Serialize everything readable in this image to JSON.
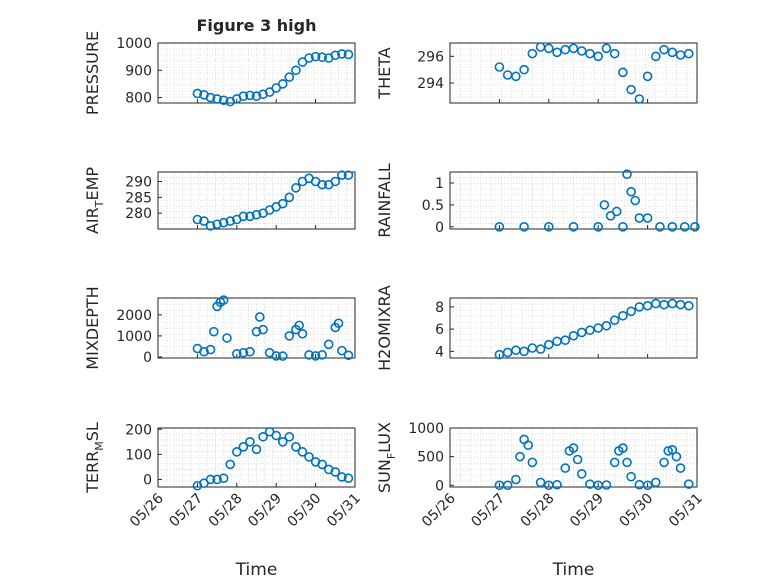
{
  "figure": {
    "title": "Figure 3 high"
  },
  "colors": {
    "marker": "#0072BD",
    "axis": "#262626",
    "grid": "#c8c8c8",
    "background": "#ffffff"
  },
  "chart_data": [
    {
      "type": "scatter",
      "title": "Figure 3 high",
      "xlabel": "",
      "ylabel": "PRESSURE",
      "xlim": [
        "05/26",
        "05/31"
      ],
      "ylim": [
        780,
        1000
      ],
      "grid": true,
      "yticks": [
        800,
        900,
        1000
      ],
      "x": [
        "05/27 00:00",
        "05/27 04:00",
        "05/27 08:00",
        "05/27 12:00",
        "05/27 16:00",
        "05/27 20:00",
        "05/28 00:00",
        "05/28 04:00",
        "05/28 08:00",
        "05/28 12:00",
        "05/28 16:00",
        "05/28 20:00",
        "05/29 00:00",
        "05/29 04:00",
        "05/29 08:00",
        "05/29 12:00",
        "05/29 16:00",
        "05/29 20:00",
        "05/30 00:00",
        "05/30 04:00",
        "05/30 08:00",
        "05/30 12:00",
        "05/30 16:00",
        "05/30 20:00"
      ],
      "y": [
        815,
        810,
        800,
        795,
        790,
        785,
        795,
        805,
        808,
        805,
        812,
        820,
        835,
        850,
        875,
        900,
        930,
        945,
        950,
        948,
        945,
        955,
        960,
        958
      ]
    },
    {
      "type": "scatter",
      "title": "",
      "xlabel": "",
      "ylabel": "THETA",
      "xlim": [
        "05/26",
        "05/31"
      ],
      "ylim": [
        292.5,
        297
      ],
      "grid": true,
      "yticks": [
        294,
        296
      ],
      "x": [
        "05/27 00:00",
        "05/27 04:00",
        "05/27 08:00",
        "05/27 12:00",
        "05/27 16:00",
        "05/27 20:00",
        "05/28 00:00",
        "05/28 04:00",
        "05/28 08:00",
        "05/28 12:00",
        "05/28 16:00",
        "05/28 20:00",
        "05/29 00:00",
        "05/29 04:00",
        "05/29 08:00",
        "05/29 12:00",
        "05/29 16:00",
        "05/29 20:00",
        "05/30 00:00",
        "05/30 04:00",
        "05/30 08:00",
        "05/30 12:00",
        "05/30 16:00",
        "05/30 20:00"
      ],
      "y": [
        295.2,
        294.6,
        294.5,
        295.0,
        296.2,
        296.7,
        296.6,
        296.3,
        296.5,
        296.6,
        296.4,
        296.2,
        296.0,
        296.6,
        296.2,
        294.8,
        293.5,
        292.8,
        294.5,
        296.0,
        296.5,
        296.3,
        296.1,
        296.2
      ]
    },
    {
      "type": "scatter",
      "title": "",
      "xlabel": "",
      "ylabel": "AIR_TEMP",
      "xlim": [
        "05/26",
        "05/31"
      ],
      "ylim": [
        275,
        293
      ],
      "grid": true,
      "yticks": [
        280,
        285,
        290
      ],
      "x": [
        "05/27 00:00",
        "05/27 04:00",
        "05/27 08:00",
        "05/27 12:00",
        "05/27 16:00",
        "05/27 20:00",
        "05/28 00:00",
        "05/28 04:00",
        "05/28 08:00",
        "05/28 12:00",
        "05/28 16:00",
        "05/28 20:00",
        "05/29 00:00",
        "05/29 04:00",
        "05/29 08:00",
        "05/29 12:00",
        "05/29 16:00",
        "05/29 20:00",
        "05/30 00:00",
        "05/30 04:00",
        "05/30 08:00",
        "05/30 12:00",
        "05/30 16:00",
        "05/30 20:00"
      ],
      "y": [
        278,
        277.5,
        276,
        276.5,
        277,
        277.5,
        278,
        279,
        279,
        279.5,
        280,
        281,
        282,
        283,
        285,
        288,
        290,
        291,
        290,
        289,
        289,
        290,
        292,
        292
      ]
    },
    {
      "type": "scatter",
      "title": "",
      "xlabel": "",
      "ylabel": "RAINFALL",
      "xlim": [
        "05/26",
        "05/31"
      ],
      "ylim": [
        -0.05,
        1.25
      ],
      "grid": true,
      "yticks": [
        0,
        0.5,
        1
      ],
      "x": [
        "05/27 00:00",
        "05/27 12:00",
        "05/28 00:00",
        "05/28 12:00",
        "05/29 00:00",
        "05/29 03:00",
        "05/29 06:00",
        "05/29 09:00",
        "05/29 12:00",
        "05/29 14:00",
        "05/29 16:00",
        "05/29 18:00",
        "05/29 20:00",
        "05/30 00:00",
        "05/30 06:00",
        "05/30 12:00",
        "05/30 18:00",
        "05/30 23:00"
      ],
      "y": [
        0,
        0,
        0,
        0,
        0,
        0.5,
        0.25,
        0.35,
        0,
        1.2,
        0.8,
        0.6,
        0.2,
        0.2,
        0,
        0,
        0,
        0
      ]
    },
    {
      "type": "scatter",
      "title": "",
      "xlabel": "",
      "ylabel": "MIXDEPTH",
      "xlim": [
        "05/26",
        "05/31"
      ],
      "ylim": [
        -50,
        2800
      ],
      "grid": true,
      "yticks": [
        0,
        1000,
        2000
      ],
      "x": [
        "05/27 00:00",
        "05/27 04:00",
        "05/27 08:00",
        "05/27 10:00",
        "05/27 12:00",
        "05/27 14:00",
        "05/27 16:00",
        "05/27 18:00",
        "05/28 00:00",
        "05/28 04:00",
        "05/28 08:00",
        "05/28 12:00",
        "05/28 14:00",
        "05/28 16:00",
        "05/28 20:00",
        "05/29 00:00",
        "05/29 04:00",
        "05/29 08:00",
        "05/29 12:00",
        "05/29 14:00",
        "05/29 16:00",
        "05/29 20:00",
        "05/30 00:00",
        "05/30 04:00",
        "05/30 08:00",
        "05/30 12:00",
        "05/30 14:00",
        "05/30 16:00",
        "05/30 20:00"
      ],
      "y": [
        400,
        250,
        350,
        1200,
        2400,
        2600,
        2700,
        900,
        150,
        200,
        250,
        1200,
        1900,
        1300,
        200,
        50,
        40,
        1000,
        1300,
        1500,
        1100,
        100,
        50,
        100,
        600,
        1400,
        1600,
        300,
        80
      ]
    },
    {
      "type": "scatter",
      "title": "",
      "xlabel": "",
      "ylabel": "H2OMIXRA",
      "xlim": [
        "05/26",
        "05/31"
      ],
      "ylim": [
        3.4,
        8.8
      ],
      "grid": true,
      "yticks": [
        4,
        6,
        8
      ],
      "x": [
        "05/27 00:00",
        "05/27 04:00",
        "05/27 08:00",
        "05/27 12:00",
        "05/27 16:00",
        "05/27 20:00",
        "05/28 00:00",
        "05/28 04:00",
        "05/28 08:00",
        "05/28 12:00",
        "05/28 16:00",
        "05/28 20:00",
        "05/29 00:00",
        "05/29 04:00",
        "05/29 08:00",
        "05/29 12:00",
        "05/29 16:00",
        "05/29 20:00",
        "05/30 00:00",
        "05/30 04:00",
        "05/30 08:00",
        "05/30 12:00",
        "05/30 16:00",
        "05/30 20:00"
      ],
      "y": [
        3.7,
        3.9,
        4.1,
        4.0,
        4.3,
        4.2,
        4.6,
        4.9,
        5.0,
        5.4,
        5.7,
        5.9,
        6.1,
        6.3,
        6.8,
        7.2,
        7.6,
        8.0,
        8.1,
        8.3,
        8.2,
        8.3,
        8.2,
        8.1
      ]
    },
    {
      "type": "scatter",
      "title": "",
      "xlabel": "Time",
      "ylabel": "TERR_MSL",
      "xlim": [
        "05/26",
        "05/31"
      ],
      "ylim": [
        -30,
        205
      ],
      "grid": true,
      "xticks": [
        "05/26",
        "05/27",
        "05/28",
        "05/29",
        "05/30",
        "05/31"
      ],
      "yticks": [
        0,
        100,
        200
      ],
      "x": [
        "05/27 00:00",
        "05/27 04:00",
        "05/27 08:00",
        "05/27 12:00",
        "05/27 16:00",
        "05/27 20:00",
        "05/28 00:00",
        "05/28 04:00",
        "05/28 08:00",
        "05/28 12:00",
        "05/28 16:00",
        "05/28 20:00",
        "05/29 00:00",
        "05/29 04:00",
        "05/29 08:00",
        "05/29 12:00",
        "05/29 16:00",
        "05/29 20:00",
        "05/30 00:00",
        "05/30 04:00",
        "05/30 08:00",
        "05/30 12:00",
        "05/30 16:00",
        "05/30 20:00"
      ],
      "y": [
        -25,
        -15,
        0,
        0,
        5,
        60,
        110,
        130,
        150,
        120,
        170,
        190,
        175,
        150,
        170,
        130,
        110,
        90,
        70,
        60,
        40,
        30,
        10,
        5
      ]
    },
    {
      "type": "scatter",
      "title": "",
      "xlabel": "Time",
      "ylabel": "SUN_FLUX",
      "xlim": [
        "05/26",
        "05/31"
      ],
      "ylim": [
        -30,
        1000
      ],
      "grid": true,
      "xticks": [
        "05/26",
        "05/27",
        "05/28",
        "05/29",
        "05/30",
        "05/31"
      ],
      "yticks": [
        0,
        500,
        1000
      ],
      "x": [
        "05/27 00:00",
        "05/27 04:00",
        "05/27 08:00",
        "05/27 10:00",
        "05/27 12:00",
        "05/27 14:00",
        "05/27 16:00",
        "05/27 20:00",
        "05/28 00:00",
        "05/28 04:00",
        "05/28 08:00",
        "05/28 10:00",
        "05/28 12:00",
        "05/28 14:00",
        "05/28 16:00",
        "05/28 20:00",
        "05/29 00:00",
        "05/29 04:00",
        "05/29 08:00",
        "05/29 10:00",
        "05/29 12:00",
        "05/29 14:00",
        "05/29 16:00",
        "05/29 20:00",
        "05/30 00:00",
        "05/30 04:00",
        "05/30 08:00",
        "05/30 10:00",
        "05/30 12:00",
        "05/30 14:00",
        "05/30 16:00",
        "05/30 20:00"
      ],
      "y": [
        0,
        0,
        100,
        500,
        800,
        700,
        400,
        50,
        0,
        10,
        300,
        600,
        650,
        450,
        200,
        20,
        0,
        5,
        400,
        600,
        650,
        400,
        150,
        10,
        0,
        50,
        400,
        600,
        620,
        500,
        300,
        20
      ]
    }
  ]
}
